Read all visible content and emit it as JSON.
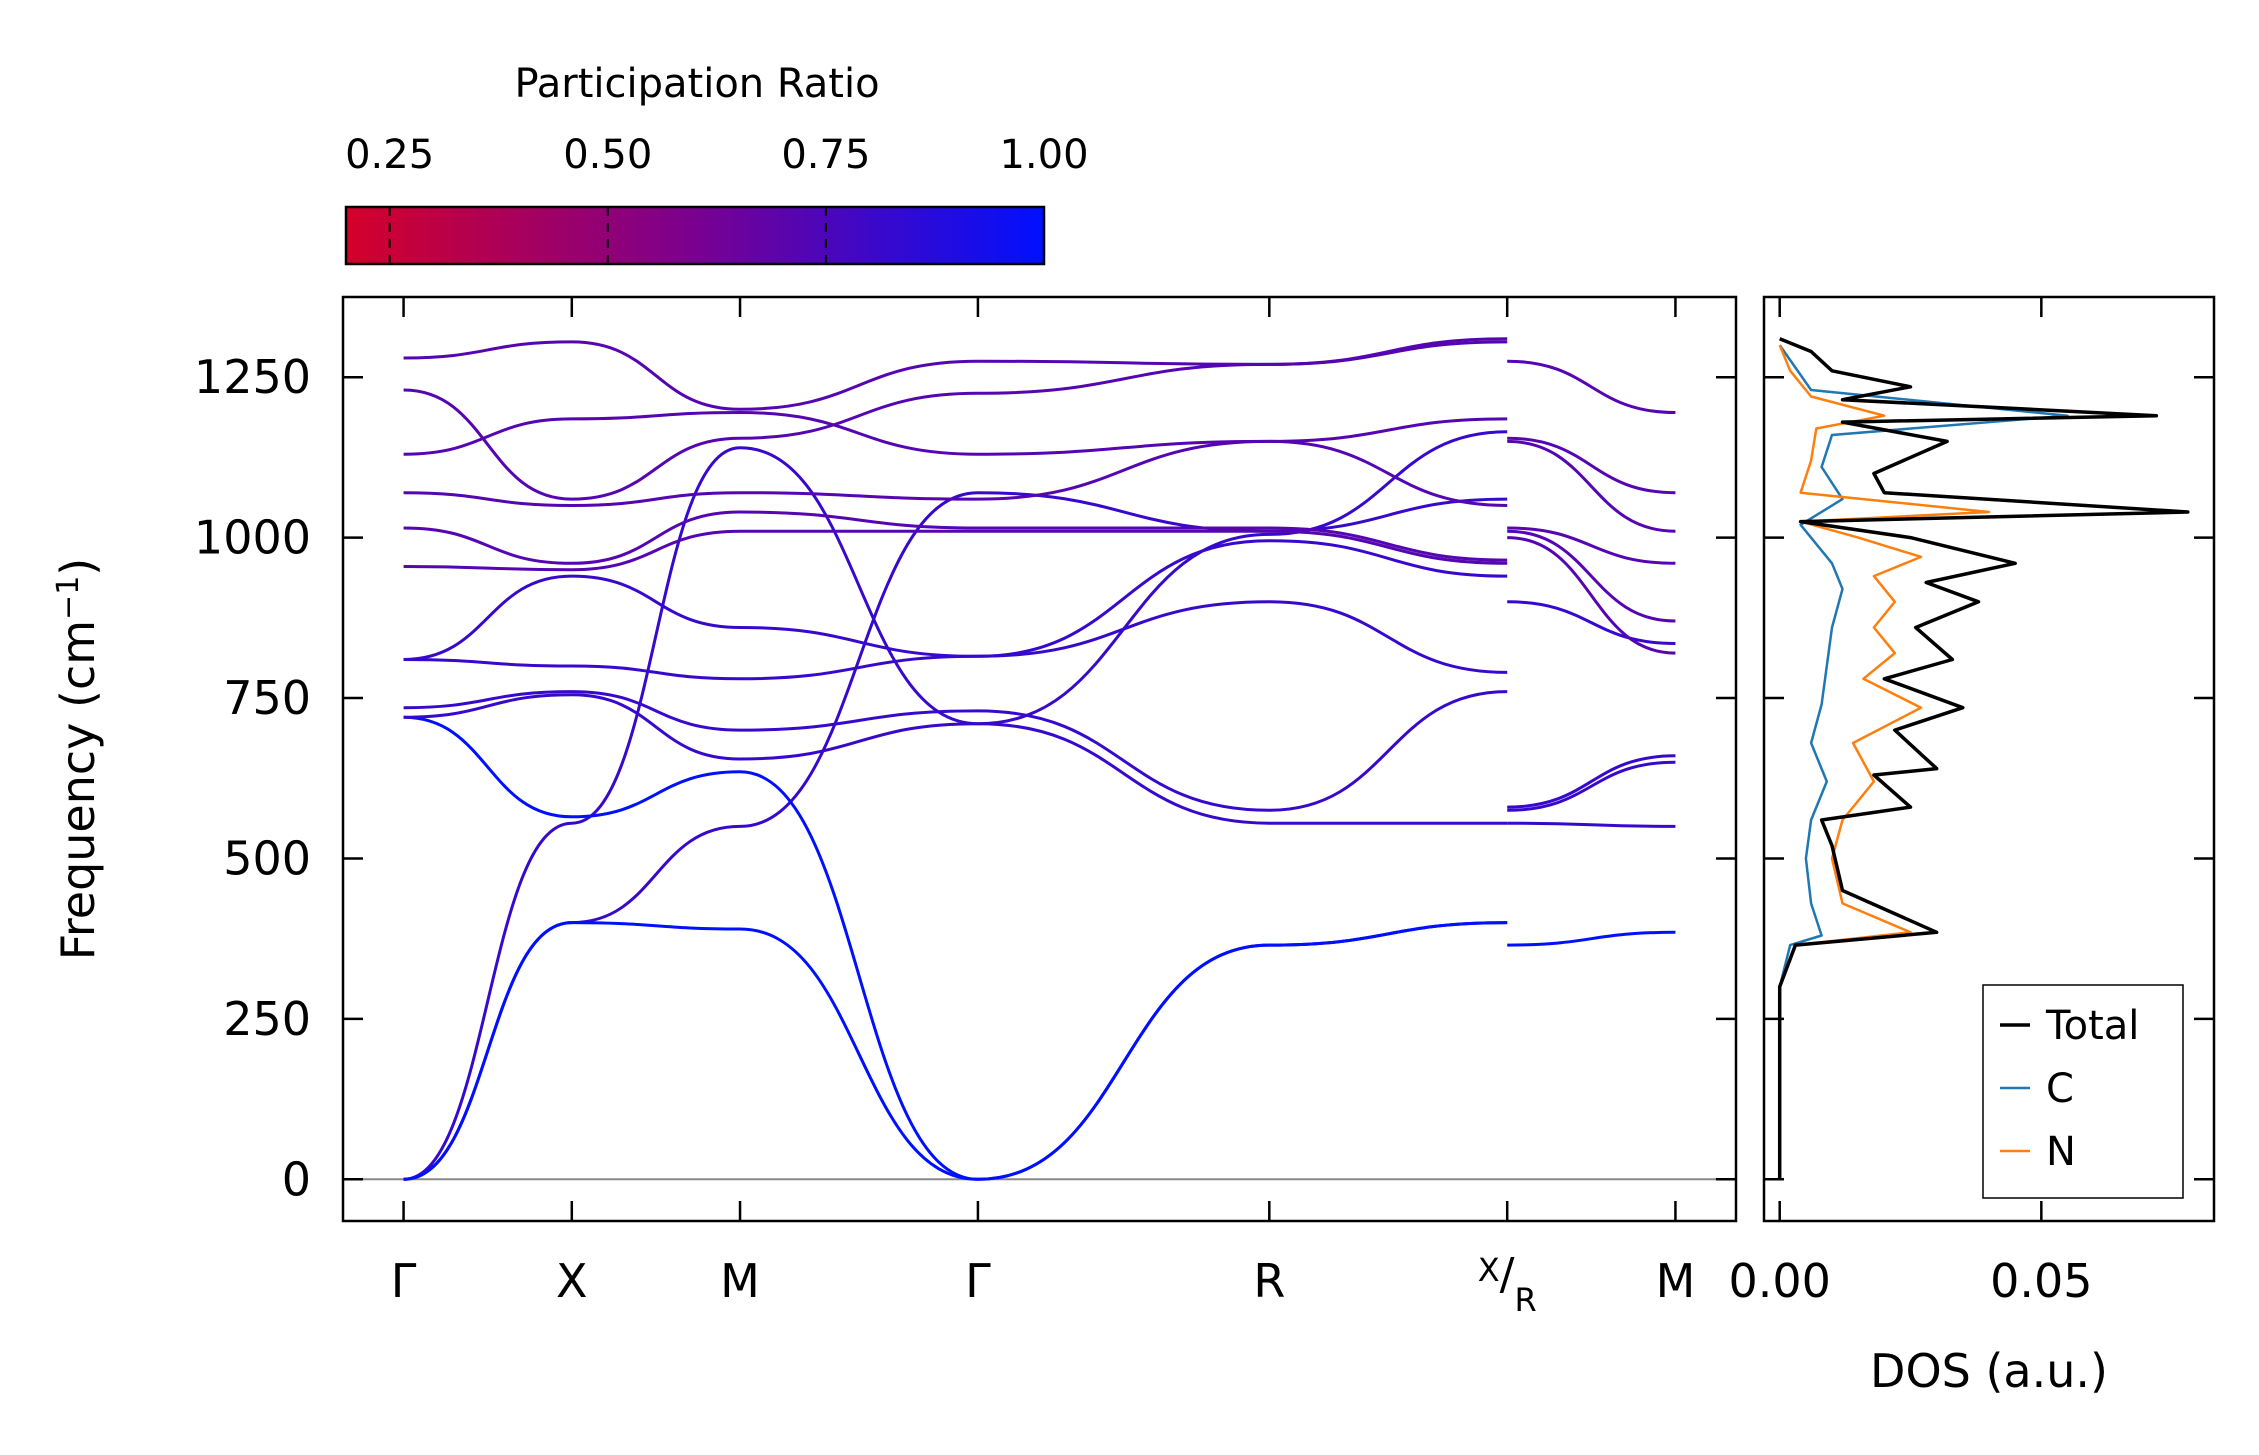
{
  "chart_data": [
    {
      "type": "line",
      "name": "phonon-band-structure",
      "ylabel": "Frequency (cm",
      "ylabel_superscript": "−1",
      "ylabel_close": ")",
      "ylim": [
        -65,
        1375
      ],
      "yticks": [
        0,
        250,
        500,
        750,
        1000,
        1250
      ],
      "ytick_labels": [
        "0",
        "250",
        "500",
        "750",
        "1000",
        "1250"
      ],
      "kpath": [
        {
          "label": "Γ",
          "x": 0.0
        },
        {
          "label": "X",
          "x": 0.5
        },
        {
          "label": "M",
          "x": 1.0
        },
        {
          "label": "Γ",
          "x": 1.707
        },
        {
          "label": "R",
          "x": 2.573
        },
        {
          "label_main": "X",
          "label_sub": "R",
          "x": 3.28
        },
        {
          "label": "M",
          "x": 3.78
        }
      ],
      "xlim": [
        -0.18,
        3.96
      ],
      "segment_break_at": 3.28,
      "zero_line": 0,
      "bands_segment1": [
        [
          [
            0,
            0
          ],
          [
            0.5,
            555
          ],
          [
            1.0,
            1140
          ],
          [
            1.707,
            710
          ],
          [
            2.573,
            1005
          ],
          [
            3.28,
            1165
          ]
        ],
        [
          [
            0,
            0
          ],
          [
            0.5,
            400
          ],
          [
            1.0,
            550
          ],
          [
            1.707,
            1070
          ],
          [
            2.573,
            1010
          ],
          [
            3.28,
            1060
          ]
        ],
        [
          [
            0,
            0
          ],
          [
            0.5,
            400
          ],
          [
            1.0,
            390
          ],
          [
            1.707,
            0
          ],
          [
            2.573,
            365
          ],
          [
            3.28,
            400
          ]
        ],
        [
          [
            0,
            720
          ],
          [
            0.5,
            565
          ],
          [
            1.0,
            635
          ],
          [
            1.707,
            0
          ],
          [
            2.573,
            365
          ],
          [
            3.28,
            400
          ]
        ],
        [
          [
            0,
            720
          ],
          [
            0.5,
            755
          ],
          [
            1.0,
            655
          ],
          [
            1.707,
            710
          ],
          [
            2.573,
            555
          ],
          [
            3.28,
            555
          ]
        ],
        [
          [
            0,
            735
          ],
          [
            0.5,
            760
          ],
          [
            1.0,
            700
          ],
          [
            1.707,
            730
          ],
          [
            2.573,
            575
          ],
          [
            3.28,
            760
          ]
        ],
        [
          [
            0,
            810
          ],
          [
            0.5,
            800
          ],
          [
            1.0,
            780
          ],
          [
            1.707,
            815
          ],
          [
            2.573,
            900
          ],
          [
            3.28,
            790
          ]
        ],
        [
          [
            0,
            810
          ],
          [
            0.5,
            940
          ],
          [
            1.0,
            860
          ],
          [
            1.707,
            815
          ],
          [
            2.573,
            995
          ],
          [
            3.28,
            940
          ]
        ],
        [
          [
            0,
            955
          ],
          [
            0.5,
            950
          ],
          [
            1.0,
            1010
          ],
          [
            1.707,
            1010
          ],
          [
            2.573,
            1010
          ],
          [
            3.28,
            960
          ]
        ],
        [
          [
            0,
            1015
          ],
          [
            0.5,
            960
          ],
          [
            1.0,
            1040
          ],
          [
            1.707,
            1015
          ],
          [
            2.573,
            1015
          ],
          [
            3.28,
            965
          ]
        ],
        [
          [
            0,
            1070
          ],
          [
            0.5,
            1050
          ],
          [
            1.0,
            1070
          ],
          [
            1.707,
            1060
          ],
          [
            2.573,
            1150
          ],
          [
            3.28,
            1050
          ]
        ],
        [
          [
            0,
            1130
          ],
          [
            0.5,
            1185
          ],
          [
            1.0,
            1195
          ],
          [
            1.707,
            1130
          ],
          [
            2.573,
            1150
          ],
          [
            3.28,
            1185
          ]
        ],
        [
          [
            0,
            1230
          ],
          [
            0.5,
            1060
          ],
          [
            1.0,
            1155
          ],
          [
            1.707,
            1225
          ],
          [
            2.573,
            1270
          ],
          [
            3.28,
            1305
          ]
        ],
        [
          [
            0,
            1280
          ],
          [
            0.5,
            1305
          ],
          [
            1.0,
            1200
          ],
          [
            1.707,
            1275
          ],
          [
            2.573,
            1270
          ],
          [
            3.28,
            1310
          ]
        ]
      ],
      "bands_segment2": [
        [
          [
            3.28,
            365
          ],
          [
            3.78,
            385
          ]
        ],
        [
          [
            3.28,
            555
          ],
          [
            3.78,
            550
          ]
        ],
        [
          [
            3.28,
            575
          ],
          [
            3.78,
            650
          ]
        ],
        [
          [
            3.28,
            580
          ],
          [
            3.78,
            660
          ]
        ],
        [
          [
            3.28,
            900
          ],
          [
            3.78,
            835
          ]
        ],
        [
          [
            3.28,
            1000
          ],
          [
            3.78,
            820
          ]
        ],
        [
          [
            3.28,
            1010
          ],
          [
            3.78,
            870
          ]
        ],
        [
          [
            3.28,
            1015
          ],
          [
            3.78,
            960
          ]
        ],
        [
          [
            3.28,
            1150
          ],
          [
            3.78,
            1010
          ]
        ],
        [
          [
            3.28,
            1155
          ],
          [
            3.78,
            1070
          ]
        ],
        [
          [
            3.28,
            1275
          ],
          [
            3.78,
            1195
          ]
        ]
      ],
      "colorbar": {
        "title": "Participation Ratio",
        "range": [
          0.2,
          1.0
        ],
        "ticks": [
          0.25,
          0.5,
          0.75,
          1.0
        ],
        "tick_labels": [
          "0.25",
          "0.50",
          "0.75",
          "1.00"
        ],
        "color_low": "#d4002a",
        "color_mid": "#7a0090",
        "color_high": "#0010ff"
      }
    },
    {
      "type": "line",
      "name": "density-of-states",
      "xlabel": "DOS (a.u.)",
      "xlim": [
        -0.003,
        0.083
      ],
      "xticks": [
        0.0,
        0.05
      ],
      "xtick_labels": [
        "0.00",
        "0.05"
      ],
      "ylim": [
        -65,
        1375
      ],
      "legend_position": "bottom-right",
      "series": [
        {
          "name": "Total",
          "color": "#000000",
          "points": [
            [
              0,
              0
            ],
            [
              0,
              300
            ],
            [
              0.003,
              365
            ],
            [
              0.03,
              385
            ],
            [
              0.012,
              450
            ],
            [
              0.01,
              520
            ],
            [
              0.008,
              560
            ],
            [
              0.025,
              580
            ],
            [
              0.018,
              630
            ],
            [
              0.03,
              640
            ],
            [
              0.022,
              700
            ],
            [
              0.035,
              735
            ],
            [
              0.02,
              780
            ],
            [
              0.033,
              810
            ],
            [
              0.026,
              860
            ],
            [
              0.038,
              900
            ],
            [
              0.028,
              930
            ],
            [
              0.045,
              960
            ],
            [
              0.025,
              1000
            ],
            [
              0.004,
              1025
            ],
            [
              0.078,
              1040
            ],
            [
              0.02,
              1070
            ],
            [
              0.018,
              1100
            ],
            [
              0.032,
              1150
            ],
            [
              0.012,
              1180
            ],
            [
              0.072,
              1190
            ],
            [
              0.012,
              1215
            ],
            [
              0.025,
              1235
            ],
            [
              0.01,
              1260
            ],
            [
              0.006,
              1290
            ],
            [
              0.0,
              1310
            ]
          ]
        },
        {
          "name": "C",
          "color": "#1f77b4",
          "points": [
            [
              0,
              0
            ],
            [
              0,
              300
            ],
            [
              0.002,
              365
            ],
            [
              0.008,
              380
            ],
            [
              0.006,
              430
            ],
            [
              0.005,
              500
            ],
            [
              0.006,
              560
            ],
            [
              0.009,
              620
            ],
            [
              0.006,
              680
            ],
            [
              0.008,
              740
            ],
            [
              0.009,
              800
            ],
            [
              0.01,
              860
            ],
            [
              0.012,
              920
            ],
            [
              0.01,
              960
            ],
            [
              0.004,
              1020
            ],
            [
              0.012,
              1060
            ],
            [
              0.008,
              1110
            ],
            [
              0.01,
              1160
            ],
            [
              0.055,
              1190
            ],
            [
              0.006,
              1230
            ],
            [
              0.0,
              1300
            ]
          ]
        },
        {
          "name": "N",
          "color": "#ff7f0e",
          "points": [
            [
              0,
              0
            ],
            [
              0,
              300
            ],
            [
              0.003,
              365
            ],
            [
              0.025,
              385
            ],
            [
              0.012,
              430
            ],
            [
              0.01,
              500
            ],
            [
              0.012,
              560
            ],
            [
              0.018,
              620
            ],
            [
              0.014,
              680
            ],
            [
              0.027,
              735
            ],
            [
              0.016,
              780
            ],
            [
              0.022,
              820
            ],
            [
              0.018,
              860
            ],
            [
              0.022,
              900
            ],
            [
              0.018,
              940
            ],
            [
              0.027,
              970
            ],
            [
              0.015,
              1000
            ],
            [
              0.004,
              1025
            ],
            [
              0.04,
              1040
            ],
            [
              0.004,
              1070
            ],
            [
              0.006,
              1120
            ],
            [
              0.007,
              1170
            ],
            [
              0.02,
              1190
            ],
            [
              0.006,
              1220
            ],
            [
              0.002,
              1260
            ],
            [
              0.0,
              1300
            ]
          ]
        }
      ]
    }
  ]
}
